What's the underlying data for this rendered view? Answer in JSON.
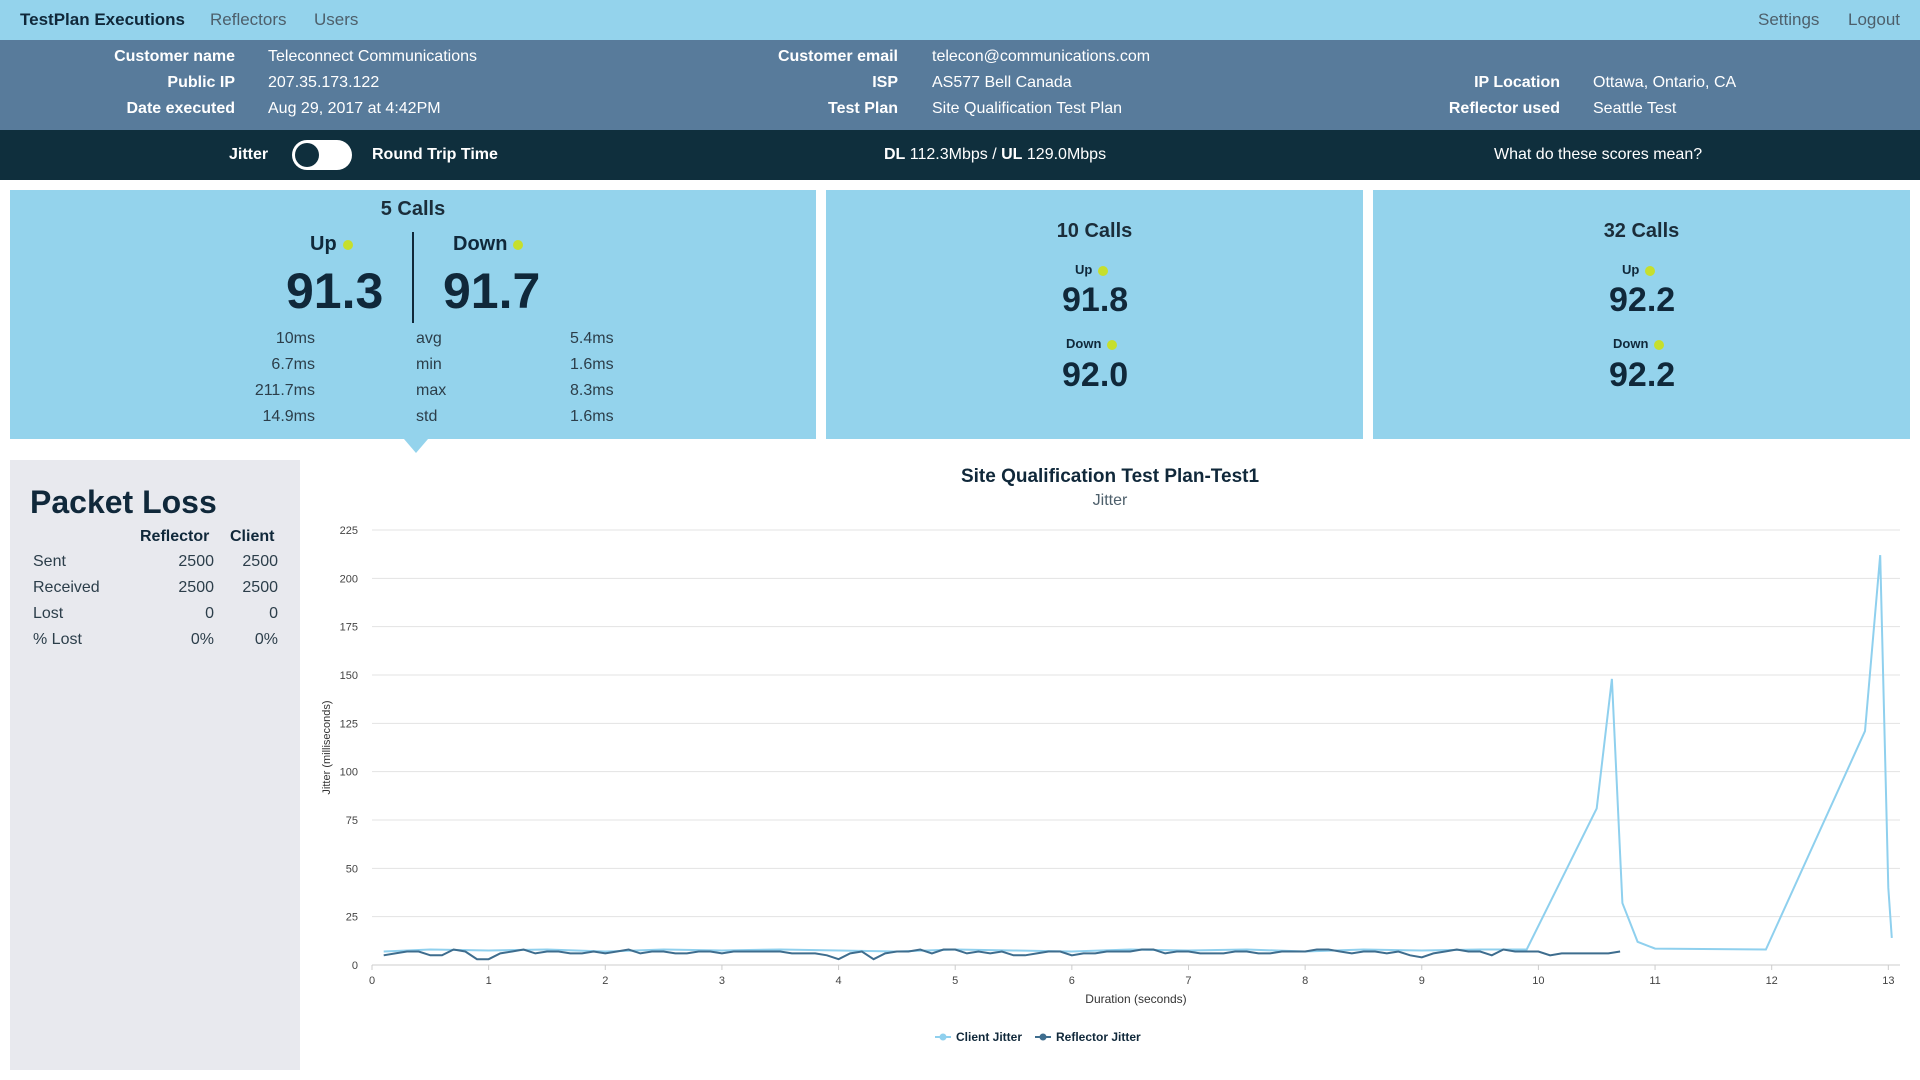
{
  "nav": {
    "brand": "TestPlan Executions",
    "reflectors": "Reflectors",
    "users": "Users",
    "settings": "Settings",
    "logout": "Logout"
  },
  "info": {
    "customer_name_label": "Customer name",
    "customer_name": "Teleconnect Communications",
    "public_ip_label": "Public IP",
    "public_ip": "207.35.173.122",
    "date_label": "Date executed",
    "date": "Aug 29, 2017 at 4:42PM",
    "email_label": "Customer email",
    "email": "telecon@communications.com",
    "isp_label": "ISP",
    "isp": "AS577 Bell Canada",
    "test_plan_label": "Test Plan",
    "test_plan": "Site Qualification Test Plan",
    "ip_location_label": "IP Location",
    "ip_location": "Ottawa, Ontario, CA",
    "reflector_label": "Reflector used",
    "reflector": "Seattle Test"
  },
  "toggle": {
    "left": "Jitter",
    "right": "Round Trip Time",
    "dl_label": "DL",
    "dl": "112.3Mbps",
    "sep": "/",
    "ul_label": "UL",
    "ul": "129.0Mbps",
    "help": "What do these scores mean?"
  },
  "cards": {
    "c5": {
      "title": "5 Calls",
      "up_label": "Up",
      "up": "91.3",
      "down_label": "Down",
      "down": "91.7",
      "stats": [
        {
          "up": "10ms",
          "name": "avg",
          "down": "5.4ms"
        },
        {
          "up": "6.7ms",
          "name": "min",
          "down": "1.6ms"
        },
        {
          "up": "211.7ms",
          "name": "max",
          "down": "8.3ms"
        },
        {
          "up": "14.9ms",
          "name": "std",
          "down": "1.6ms"
        }
      ]
    },
    "c10": {
      "title": "10 Calls",
      "up_label": "Up",
      "up": "91.8",
      "down_label": "Down",
      "down": "92.0"
    },
    "c32": {
      "title": "32 Calls",
      "up_label": "Up",
      "up": "92.2",
      "down_label": "Down",
      "down": "92.2"
    }
  },
  "packet_loss": {
    "title": "Packet Loss",
    "col_reflector": "Reflector",
    "col_client": "Client",
    "rows": [
      {
        "label": "Sent",
        "reflector": "2500",
        "client": "2500"
      },
      {
        "label": "Received",
        "reflector": "2500",
        "client": "2500"
      },
      {
        "label": "Lost",
        "reflector": "0",
        "client": "0"
      },
      {
        "label": "% Lost",
        "reflector": "0%",
        "client": "0%"
      }
    ]
  },
  "chart_data": {
    "type": "line",
    "title": "Site Qualification Test Plan-Test1",
    "subtitle": "Jitter",
    "xlabel": "Duration (seconds)",
    "ylabel": "Jitter (milliseconds)",
    "xlim": [
      0,
      13.1
    ],
    "ylim": [
      0,
      225
    ],
    "xticks": [
      0,
      1,
      2,
      3,
      4,
      5,
      6,
      7,
      8,
      9,
      10,
      11,
      12,
      13
    ],
    "yticks": [
      0,
      25,
      50,
      75,
      100,
      125,
      150,
      175,
      200,
      225
    ],
    "grid": true,
    "legend_position": "bottom",
    "colors": {
      "client": "#8fd0ee",
      "reflector": "#3e6d8e"
    },
    "series": [
      {
        "name": "Client Jitter",
        "x": [
          0.1,
          0.5,
          1.0,
          1.5,
          2.0,
          2.5,
          3.0,
          3.5,
          4.0,
          4.5,
          5.0,
          5.5,
          6.0,
          6.5,
          7.0,
          7.5,
          8.0,
          8.5,
          9.0,
          9.5,
          9.9,
          10.5,
          10.63,
          10.72,
          10.85,
          11.0,
          11.95,
          12.8,
          12.93,
          13.0,
          13.03
        ],
        "y": [
          7,
          8,
          7.5,
          8,
          7,
          8,
          7.5,
          8,
          7.5,
          7,
          8,
          7.5,
          7,
          8,
          7.5,
          8,
          7,
          8,
          7.5,
          8,
          8,
          81,
          148,
          32,
          12,
          8.5,
          8,
          121,
          212,
          40,
          14
        ]
      },
      {
        "name": "Reflector Jitter",
        "x": [
          0.1,
          0.2,
          0.3,
          0.4,
          0.5,
          0.6,
          0.7,
          0.8,
          0.9,
          1.0,
          1.1,
          1.2,
          1.3,
          1.4,
          1.5,
          1.6,
          1.7,
          1.8,
          1.9,
          2.0,
          2.1,
          2.2,
          2.3,
          2.4,
          2.5,
          2.6,
          2.7,
          2.8,
          2.9,
          3.0,
          3.1,
          3.2,
          3.3,
          3.4,
          3.5,
          3.6,
          3.7,
          3.8,
          3.9,
          4.0,
          4.1,
          4.2,
          4.3,
          4.4,
          4.5,
          4.6,
          4.7,
          4.8,
          4.9,
          5.0,
          5.1,
          5.2,
          5.3,
          5.4,
          5.5,
          5.6,
          5.7,
          5.8,
          5.9,
          6.0,
          6.1,
          6.2,
          6.3,
          6.4,
          6.5,
          6.6,
          6.7,
          6.8,
          6.9,
          7.0,
          7.1,
          7.2,
          7.3,
          7.4,
          7.5,
          7.6,
          7.7,
          7.8,
          7.9,
          8.0,
          8.1,
          8.2,
          8.3,
          8.4,
          8.5,
          8.6,
          8.7,
          8.8,
          8.9,
          9.0,
          9.1,
          9.2,
          9.3,
          9.4,
          9.5,
          9.6,
          9.7,
          9.8,
          9.9,
          10.0,
          10.1,
          10.2,
          10.3,
          10.4,
          10.5,
          10.6,
          10.7
        ],
        "y": [
          5,
          6,
          7,
          7,
          5,
          5,
          8,
          7,
          3,
          3,
          6,
          7,
          8,
          6,
          7,
          7,
          6,
          6,
          7,
          6,
          7,
          8,
          6,
          7,
          7,
          6,
          6,
          7,
          7,
          6,
          7,
          7,
          7,
          7,
          7,
          6,
          6,
          6,
          5,
          3,
          6,
          7,
          3,
          6,
          7,
          7,
          8,
          6,
          8,
          8,
          6,
          7,
          6,
          7,
          5,
          5,
          6,
          7,
          7,
          5,
          6,
          6,
          7,
          7,
          7,
          8,
          8,
          6,
          7,
          7,
          6,
          6,
          6,
          7,
          7,
          6,
          6,
          7,
          7,
          7,
          8,
          8,
          7,
          6,
          7,
          7,
          6,
          7,
          5,
          4,
          6,
          7,
          8,
          7,
          7,
          5,
          8,
          7,
          7,
          7,
          5,
          6,
          6,
          6,
          6,
          6,
          7
        ]
      }
    ]
  }
}
